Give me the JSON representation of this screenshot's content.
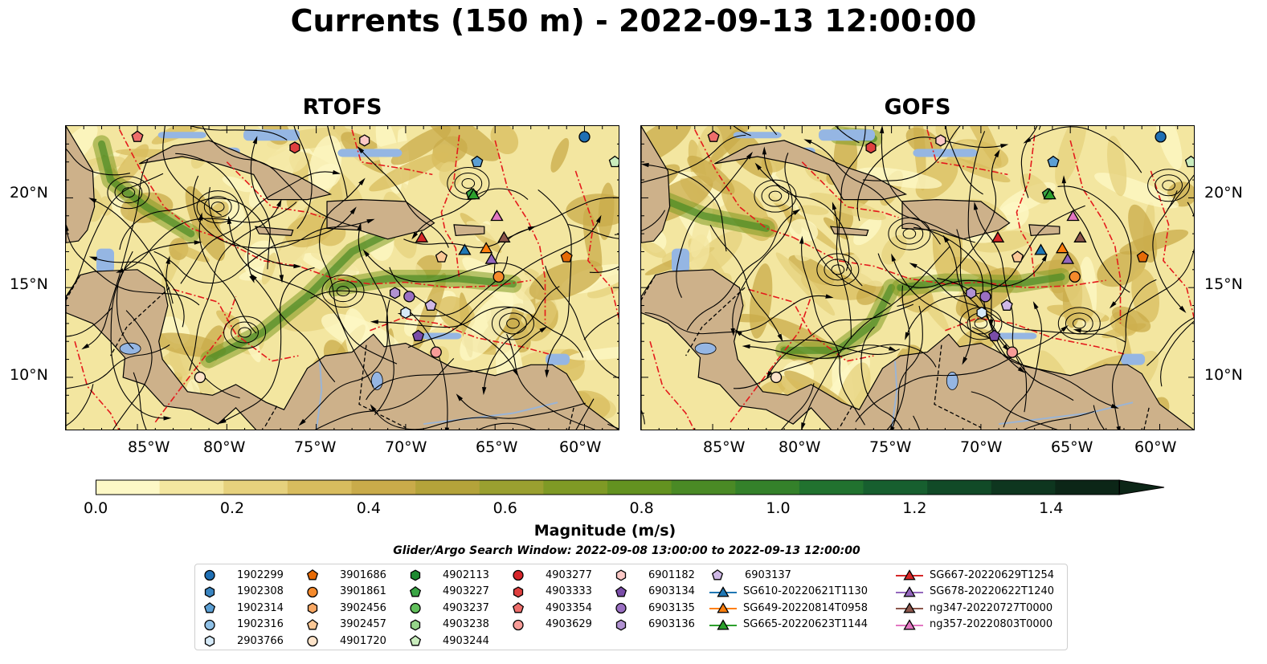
{
  "title": "Currents (150 m) - 2022-09-13 12:00:00",
  "panels": [
    {
      "title": "RTOFS"
    },
    {
      "title": "GOFS"
    }
  ],
  "axes": {
    "lon_labels": [
      "85°W",
      "80°W",
      "75°W",
      "70°W",
      "65°W",
      "60°W"
    ],
    "lat_labels": [
      "20°N",
      "15°N",
      "10°N"
    ]
  },
  "colorbar": {
    "label": "Magnitude (m/s)",
    "ticks": [
      "0.0",
      "0.2",
      "0.4",
      "0.6",
      "0.8",
      "1.0",
      "1.2",
      "1.4"
    ],
    "range": [
      0.0,
      1.5
    ],
    "extend": "max",
    "colors": [
      "#fdf8c6",
      "#f3e6a0",
      "#e6d17d",
      "#d8bc5e",
      "#c9ab4a",
      "#b4a33a",
      "#9aa030",
      "#7f9a25",
      "#639220",
      "#4a8a25",
      "#34812a",
      "#21722f",
      "#175f2f",
      "#114a27",
      "#0e361f",
      "#0c2617"
    ]
  },
  "search_window": "Glider/Argo Search Window: 2022-09-08 13:00:00 to 2022-09-13 12:00:00",
  "legend": {
    "columns": [
      [
        {
          "label": "1902299",
          "marker": "circle",
          "color": "#1f6fb4"
        },
        {
          "label": "1902308",
          "marker": "hexagon",
          "color": "#3a85c1"
        },
        {
          "label": "1902314",
          "marker": "pentagon",
          "color": "#5b9fd4"
        },
        {
          "label": "1902316",
          "marker": "circle",
          "color": "#8fc0e6"
        },
        {
          "label": "2903766",
          "marker": "hexagon",
          "color": "#d6eaf8"
        }
      ],
      [
        {
          "label": "3901686",
          "marker": "pentagon",
          "color": "#e66a06"
        },
        {
          "label": "3901861",
          "marker": "circle",
          "color": "#f58a2c"
        },
        {
          "label": "3902456",
          "marker": "hexagon",
          "color": "#f8a864"
        },
        {
          "label": "3902457",
          "marker": "pentagon",
          "color": "#fbc896"
        },
        {
          "label": "4901720",
          "marker": "circle",
          "color": "#fde3c9"
        }
      ],
      [
        {
          "label": "4902113",
          "marker": "hexagon",
          "color": "#1f8a31"
        },
        {
          "label": "4903227",
          "marker": "pentagon",
          "color": "#3aa544"
        },
        {
          "label": "4903237",
          "marker": "circle",
          "color": "#62c05c"
        },
        {
          "label": "4903238",
          "marker": "hexagon",
          "color": "#96d58a"
        },
        {
          "label": "4903244",
          "marker": "pentagon",
          "color": "#c9ecbd"
        }
      ],
      [
        {
          "label": "4903277",
          "marker": "circle",
          "color": "#d6252a"
        },
        {
          "label": "4903333",
          "marker": "hexagon",
          "color": "#e0403f"
        },
        {
          "label": "4903354",
          "marker": "pentagon",
          "color": "#ee6e6b"
        },
        {
          "label": "4903629",
          "marker": "circle",
          "color": "#f79c98"
        }
      ],
      [
        {
          "label": "6901182",
          "marker": "hexagon",
          "color": "#fcc9c6"
        },
        {
          "label": "6903134",
          "marker": "pentagon",
          "color": "#7a4da8"
        },
        {
          "label": "6903135",
          "marker": "circle",
          "color": "#9a6fc2"
        },
        {
          "label": "6903136",
          "marker": "hexagon",
          "color": "#b192d2"
        }
      ],
      [
        {
          "label": "6903137",
          "marker": "pentagon",
          "color": "#cfb8e6"
        },
        {
          "label": "SG610-20220621T1130",
          "marker": "triangle-line",
          "color": "#1f77b4"
        },
        {
          "label": "SG649-20220814T0958",
          "marker": "triangle-line",
          "color": "#ff7f0e"
        },
        {
          "label": "SG665-20220623T1144",
          "marker": "triangle-line",
          "color": "#2ca02c"
        }
      ],
      [
        {
          "label": "SG667-20220629T1254",
          "marker": "triangle-line",
          "color": "#d62728"
        },
        {
          "label": "SG678-20220622T1240",
          "marker": "triangle-line",
          "color": "#9467bd"
        },
        {
          "label": "ng347-20220727T0000",
          "marker": "triangle-line",
          "color": "#8c564b"
        },
        {
          "label": "ng357-20220803T0000",
          "marker": "triangle-line",
          "color": "#e377c2"
        }
      ]
    ]
  },
  "map_colors": {
    "land": "#cdb18a",
    "shallow": "#95b6e3",
    "eez": "#e41a1c",
    "stream": "#000000"
  },
  "map_extent": {
    "lon": [
      -89,
      -58
    ],
    "lat": [
      7,
      24
    ]
  },
  "observations": [
    {
      "label": "1902299",
      "lon": -60.0,
      "lat": 23.4
    },
    {
      "label": "1902314",
      "lon": -66.0,
      "lat": 22.0
    },
    {
      "label": "3901686",
      "lon": -61.0,
      "lat": 16.7
    },
    {
      "label": "3901861",
      "lon": -64.8,
      "lat": 15.6
    },
    {
      "label": "3902457",
      "lon": -68.0,
      "lat": 16.7
    },
    {
      "label": "4901720",
      "lon": -81.5,
      "lat": 10.0
    },
    {
      "label": "4903227",
      "lon": -66.3,
      "lat": 20.2
    },
    {
      "label": "4903244",
      "lon": -58.3,
      "lat": 22.0
    },
    {
      "label": "4903333",
      "lon": -76.2,
      "lat": 22.8
    },
    {
      "label": "4903354",
      "lon": -85.0,
      "lat": 23.4
    },
    {
      "label": "4903629",
      "lon": -68.3,
      "lat": 11.4
    },
    {
      "label": "6901182",
      "lon": -72.3,
      "lat": 23.2
    },
    {
      "label": "6903134",
      "lon": -69.3,
      "lat": 12.3
    },
    {
      "label": "6903135",
      "lon": -69.8,
      "lat": 14.5
    },
    {
      "label": "6903136",
      "lon": -70.6,
      "lat": 14.7
    },
    {
      "label": "6903137",
      "lon": -68.6,
      "lat": 14.0
    },
    {
      "label": "2903766",
      "lon": -70.0,
      "lat": 13.6
    },
    {
      "label": "SG610-20220621T1130",
      "lon": -66.7,
      "lat": 17.1
    },
    {
      "label": "SG649-20220814T0958",
      "lon": -65.5,
      "lat": 17.2
    },
    {
      "label": "SG665-20220623T1144",
      "lon": -66.2,
      "lat": 20.2
    },
    {
      "label": "SG667-20220629T1254",
      "lon": -69.1,
      "lat": 17.8
    },
    {
      "label": "SG678-20220622T1240",
      "lon": -65.2,
      "lat": 16.6
    },
    {
      "label": "ng347-20220727T0000",
      "lon": -64.5,
      "lat": 17.8
    },
    {
      "label": "ng357-20220803T0000",
      "lon": -64.9,
      "lat": 19.0
    }
  ]
}
